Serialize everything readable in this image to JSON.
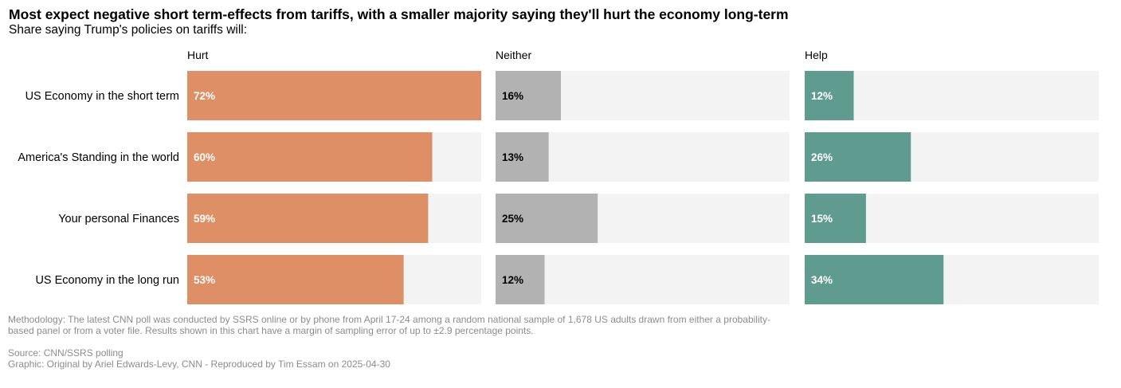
{
  "title": "Most expect negative short term-effects from tariffs, with a smaller majority saying they'll hurt the economy long-term",
  "subtitle": "Share saying Trump's policies on tariffs will:",
  "chart_data": {
    "type": "bar",
    "orientation": "horizontal",
    "layout": "small-multiples",
    "categories": [
      "US Economy in the short term",
      "America's Standing in the world",
      "Your personal Finances",
      "US Economy in the long run"
    ],
    "series": [
      {
        "name": "Hurt",
        "values": [
          72,
          60,
          59,
          53
        ],
        "color": "#de8f66",
        "label_color": "#ffffff"
      },
      {
        "name": "Neither",
        "values": [
          16,
          13,
          25,
          12
        ],
        "color": "#b2b2b2",
        "label_color": "#000000"
      },
      {
        "name": "Help",
        "values": [
          12,
          26,
          15,
          34
        ],
        "color": "#5f9c8f",
        "label_color": "#ffffff"
      }
    ],
    "value_suffix": "%",
    "xlim": [
      0,
      72
    ],
    "background_bar_color": "#f3f3f3"
  },
  "footer": {
    "methodology": "Methodology: The latest CNN poll was conducted by SSRS online or by phone from April 17-24 among a random national sample of 1,678 US adults drawn from either a probability-based panel or from a voter file. Results shown in this chart have a margin of sampling error of up to ±2.9 percentage points.",
    "source": "Source: CNN/SSRS polling",
    "credit": "Graphic: Original by Ariel Edwards-Levy, CNN - Reproduced by Tim Essam on 2025-04-30"
  }
}
